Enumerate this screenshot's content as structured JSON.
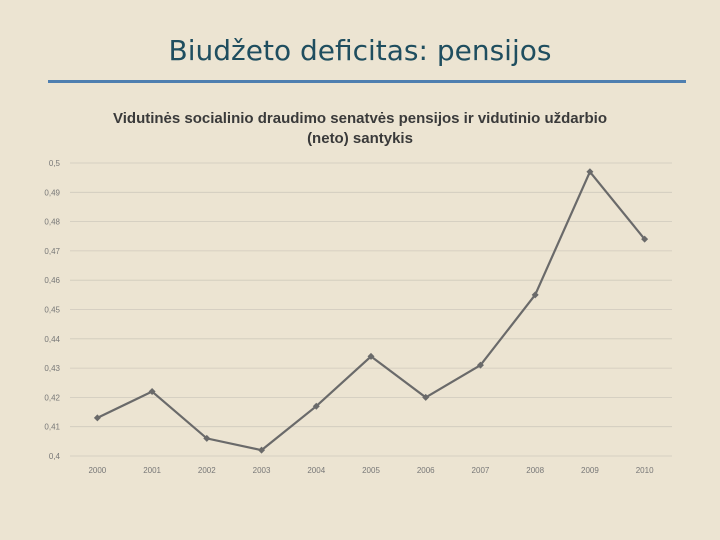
{
  "slide": {
    "title": "Biudžeto deficitas: pensijos"
  },
  "colors": {
    "background": "#ece4d2",
    "title": "#1f4e5f",
    "rule": "#4f7fb0",
    "line": "#6a6a6a",
    "grid": "#cfc9bc"
  },
  "chart_data": {
    "type": "line",
    "title": "Vidutinės socialinio draudimo senatvės pensijos ir vidutinio uždarbio (neto) santykis",
    "title_lines": [
      "Vidutinės socialinio draudimo senatvės pensijos ir vidutinio uždarbio",
      "(neto) santykis"
    ],
    "xlabel": "",
    "ylabel": "",
    "ylim": [
      0.4,
      0.5
    ],
    "grid": true,
    "categories": [
      "2000",
      "2001",
      "2002",
      "2003",
      "2004",
      "2005",
      "2006",
      "2007",
      "2008",
      "2009",
      "2010"
    ],
    "y_ticks": [
      "0,4",
      "0,41",
      "0,42",
      "0,43",
      "0,44",
      "0,45",
      "0,46",
      "0,47",
      "0,48",
      "0,49",
      "0,5"
    ],
    "series": [
      {
        "values": [
          0.413,
          0.422,
          0.406,
          0.402,
          0.417,
          0.434,
          0.42,
          0.431,
          0.455,
          0.497,
          0.474
        ]
      }
    ]
  }
}
